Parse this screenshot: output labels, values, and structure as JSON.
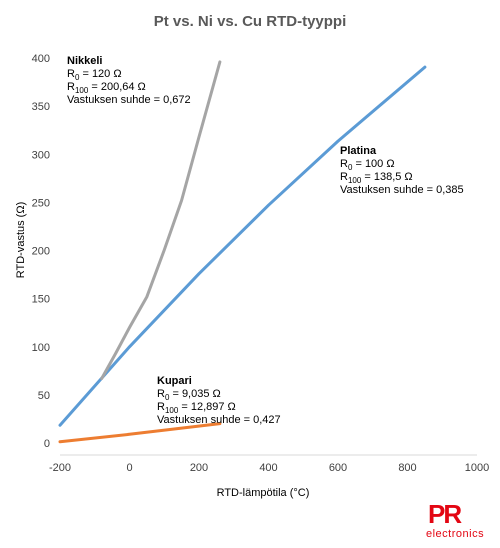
{
  "chart_data": {
    "type": "line",
    "title": "Pt vs. Ni vs. Cu RTD-tyyppi",
    "xlabel": "RTD-lämpötila (°C)",
    "ylabel": "RTD-vastus (Ω)",
    "xlim": [
      -200,
      1000
    ],
    "ylim": [
      0,
      400
    ],
    "xticks": [
      -200,
      0,
      200,
      400,
      600,
      800,
      1000
    ],
    "yticks": [
      0,
      50,
      100,
      150,
      200,
      250,
      300,
      350,
      400
    ],
    "xtick_labels": [
      "-200",
      "0",
      "200",
      "400",
      "600",
      "800",
      "1000"
    ],
    "ytick_labels": [
      "0",
      "50",
      "100",
      "150",
      "200",
      "250",
      "300",
      "350",
      "400"
    ],
    "grid": false,
    "series": [
      {
        "name": "Platina",
        "color": "#5b9bd5",
        "x": [
          -200,
          0,
          200,
          400,
          600,
          850
        ],
        "y": [
          18.5,
          100,
          175.9,
          247.1,
          313.7,
          390.5
        ]
      },
      {
        "name": "Nikkeli",
        "color": "#a5a5a5",
        "x": [
          -80,
          -40,
          0,
          50,
          100,
          150,
          200,
          260
        ],
        "y": [
          67,
          93,
          120,
          152,
          200.6,
          252,
          318,
          396
        ]
      },
      {
        "name": "Kupari",
        "color": "#ed7d31",
        "x": [
          -200,
          0,
          260
        ],
        "y": [
          1.3,
          9.0,
          20.2
        ]
      }
    ],
    "annotations": [
      {
        "series": "Nikkeli",
        "name": "Nikkeli",
        "lines": [
          [
            "R",
            "0",
            " = 120 Ω"
          ],
          [
            "R",
            "100",
            " = 200,64 Ω"
          ],
          [
            "Vastuksen suhde = 0,672",
            "",
            ""
          ]
        ]
      },
      {
        "series": "Platina",
        "name": "Platina",
        "lines": [
          [
            "R",
            "0",
            " = 100 Ω"
          ],
          [
            "R",
            "100",
            " = 138,5 Ω"
          ],
          [
            "Vastuksen suhde = 0,385",
            "",
            ""
          ]
        ]
      },
      {
        "series": "Kupari",
        "name": "Kupari",
        "lines": [
          [
            "R",
            "0",
            " = 9,035 Ω"
          ],
          [
            "R",
            "100",
            " = 12,897 Ω"
          ],
          [
            "Vastuksen suhde = 0,427",
            "",
            ""
          ]
        ]
      }
    ]
  },
  "logo": {
    "mark": "PR",
    "sub": "electronics",
    "color": "#e30613"
  }
}
